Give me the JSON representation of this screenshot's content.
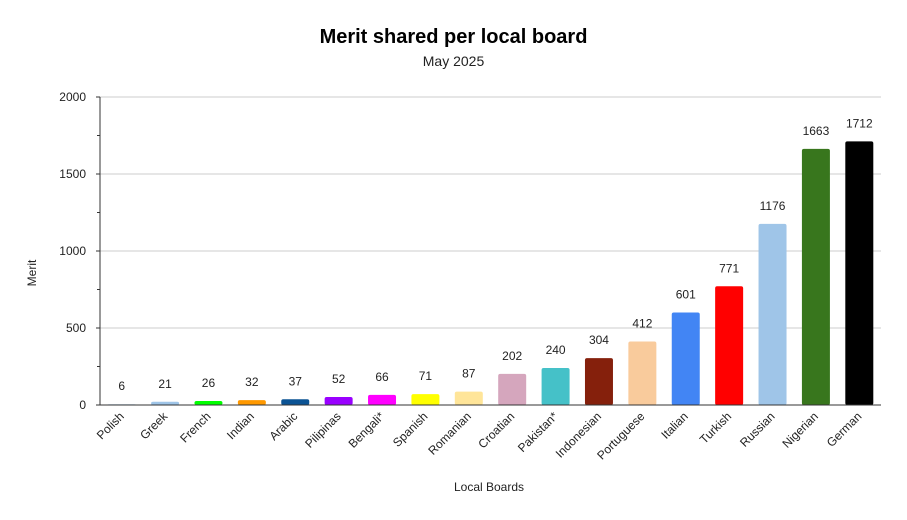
{
  "chart_data": {
    "type": "bar",
    "title": "Merit shared per local board",
    "subtitle": "May 2025",
    "xlabel": "Local Boards",
    "ylabel": "Merit",
    "ylim": [
      0,
      2000
    ],
    "yticks": [
      0,
      500,
      1000,
      1500,
      2000
    ],
    "grid": true,
    "legend": "none",
    "categories": [
      "Polish",
      "Greek",
      "French",
      "Indian",
      "Arabic",
      "Pilipinas",
      "Bengali*",
      "Spanish",
      "Romanian",
      "Croatian",
      "Pakistan*",
      "Indonesian",
      "Portuguese",
      "Italian",
      "Turkish",
      "Russian",
      "Nigerian",
      "German"
    ],
    "values": [
      6,
      21,
      26,
      32,
      37,
      52,
      66,
      71,
      87,
      202,
      240,
      304,
      412,
      601,
      771,
      1176,
      1663,
      1712
    ],
    "colors": [
      "#cfe2f3",
      "#9fc5e8",
      "#00ff00",
      "#ff9900",
      "#0b5394",
      "#9900ff",
      "#ff00ff",
      "#ffff00",
      "#ffe599",
      "#d5a6bd",
      "#45c1c8",
      "#85200c",
      "#f9cb9c",
      "#4285f4",
      "#ff0000",
      "#9fc5e8",
      "#38761d",
      "#000000"
    ]
  }
}
